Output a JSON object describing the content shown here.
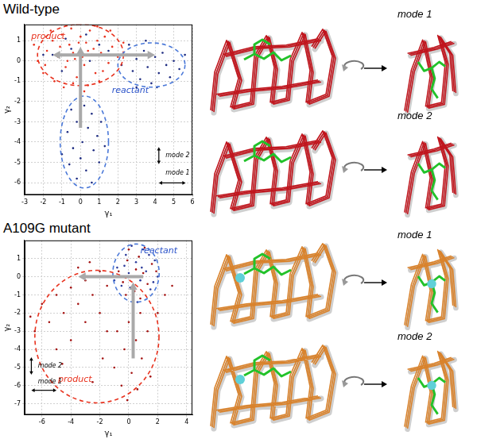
{
  "chart_data": [
    {
      "type": "scatter",
      "title": "Wild-type",
      "x_label": "γ₁",
      "y_label": "γ₂",
      "xlim": [
        -3,
        6
      ],
      "xticks": [
        -3,
        -2,
        -1,
        0,
        1,
        2,
        3,
        4,
        5,
        6
      ],
      "ylim": [
        -6.6,
        1.8
      ],
      "yticks": [
        -6,
        -5,
        -4,
        -3,
        -2,
        -1,
        0,
        1
      ],
      "grid": true,
      "series": [
        {
          "name": "reactant",
          "color": "#1c2a80",
          "marker": "circle",
          "values": [
            [
              -1.5,
              0.3
            ],
            [
              -0.5,
              0.6
            ],
            [
              0.5,
              0.0
            ],
            [
              1,
              0.8
            ],
            [
              -1,
              -0.5
            ],
            [
              0,
              -0.3
            ],
            [
              1.5,
              0.5
            ],
            [
              -2,
              0.3
            ],
            [
              0.3,
              1.3
            ],
            [
              -0.8,
              1.1
            ],
            [
              2.2,
              -0.2
            ],
            [
              2.5,
              0.3
            ],
            [
              2.8,
              -0.5
            ],
            [
              3,
              0.1
            ],
            [
              3.2,
              -0.9
            ],
            [
              3.4,
              0.5
            ],
            [
              3.6,
              -0.3
            ],
            [
              3.8,
              -1.1
            ],
            [
              4,
              0.2
            ],
            [
              4.2,
              -0.6
            ],
            [
              4.4,
              0.4
            ],
            [
              4.6,
              -0.2
            ],
            [
              4.8,
              -0.8
            ],
            [
              5,
              0
            ],
            [
              5.3,
              -0.4
            ],
            [
              5.6,
              0.3
            ],
            [
              3,
              -1.3
            ],
            [
              2.6,
              0.8
            ],
            [
              4.1,
              -1.3
            ],
            [
              3.5,
              1
            ],
            [
              0,
              -2
            ],
            [
              -0.5,
              -2.4
            ],
            [
              0.6,
              -2.6
            ],
            [
              -0.2,
              -3
            ],
            [
              0.4,
              -3.3
            ],
            [
              -0.7,
              -3.5
            ],
            [
              0.9,
              -3.7
            ],
            [
              0.1,
              -4
            ],
            [
              -0.4,
              -4.3
            ],
            [
              0.7,
              -4.4
            ],
            [
              0,
              -4.8
            ],
            [
              1,
              -5
            ],
            [
              -0.6,
              -5.1
            ],
            [
              0.3,
              -5.4
            ],
            [
              -0.2,
              -5.8
            ],
            [
              0.6,
              -6
            ],
            [
              1.3,
              -4.2
            ],
            [
              -1,
              -4.6
            ],
            [
              0.2,
              -2.2
            ],
            [
              1.1,
              -3
            ]
          ]
        },
        {
          "name": "product",
          "color": "#e8321e",
          "marker": "circle",
          "values": [
            [
              -1.8,
              0.5
            ],
            [
              -1.5,
              1.0
            ],
            [
              -1.2,
              0.2
            ],
            [
              -1,
              1.3
            ],
            [
              -0.8,
              -0.3
            ],
            [
              -0.6,
              0.8
            ],
            [
              -0.5,
              1.6
            ],
            [
              -0.3,
              0.1
            ],
            [
              -0.2,
              -0.8
            ],
            [
              0,
              0.5
            ],
            [
              0,
              1.2
            ],
            [
              0.2,
              -0.2
            ],
            [
              0.3,
              0.9
            ],
            [
              0.5,
              1.5
            ],
            [
              0.6,
              0.3
            ],
            [
              0.8,
              -0.6
            ],
            [
              0.9,
              1.0
            ],
            [
              1.1,
              0.4
            ],
            [
              1.3,
              1.2
            ],
            [
              1.5,
              -0.1
            ],
            [
              1.7,
              0.7
            ],
            [
              2,
              0.2
            ],
            [
              -2.3,
              0
            ],
            [
              -2,
              -0.6
            ],
            [
              -1.4,
              -1
            ],
            [
              -0.9,
              -1.3
            ],
            [
              -0.4,
              -1.1
            ],
            [
              0.4,
              -1.2
            ],
            [
              1,
              -1
            ],
            [
              -1.6,
              1.5
            ],
            [
              -0.7,
              0
            ],
            [
              0.1,
              0.2
            ],
            [
              0.7,
              0.6
            ],
            [
              -0.1,
              0.9
            ],
            [
              1.2,
              -0.5
            ],
            [
              -1.1,
              0.7
            ],
            [
              0.4,
              0.5
            ],
            [
              -0.4,
              0.4
            ],
            [
              1.6,
              1.5
            ],
            [
              -2.5,
              0.8
            ],
            [
              2.3,
              0.9
            ],
            [
              0.9,
              1.7
            ],
            [
              -0.2,
              1.8
            ],
            [
              0.2,
              -1.5
            ],
            [
              -1.9,
              -0.2
            ]
          ]
        }
      ],
      "annotations": [
        {
          "text": "product",
          "color": "#e8321e"
        },
        {
          "text": "reactant",
          "color": "#2a52c9"
        },
        {
          "text": "mode 2",
          "color": "#000000"
        },
        {
          "text": "mode 1",
          "color": "#000000"
        }
      ]
    },
    {
      "type": "scatter",
      "title": "A109G mutant",
      "x_label": "γ₁",
      "y_label": "γ₂",
      "xlim": [
        -7.2,
        4.4
      ],
      "xticks": [
        -6,
        -4,
        -2,
        0,
        2,
        4
      ],
      "ylim": [
        -7.6,
        2
      ],
      "yticks": [
        -7,
        -6,
        -5,
        -4,
        -3,
        -2,
        -1,
        0,
        1
      ],
      "grid": true,
      "series": [
        {
          "name": "reactant",
          "color": "#2b3a9a",
          "marker": "circle",
          "values": [
            [
              -0.8,
              0.5
            ],
            [
              -0.5,
              -0.5
            ],
            [
              -0.2,
              1.2
            ],
            [
              0,
              0.2
            ],
            [
              0.3,
              -1
            ],
            [
              0.5,
              0.8
            ],
            [
              0.8,
              -0.2
            ],
            [
              1,
              1.5
            ],
            [
              1.2,
              0.3
            ],
            [
              1.5,
              -0.7
            ],
            [
              1.8,
              0.9
            ],
            [
              2,
              0
            ],
            [
              -1,
              -0.2
            ],
            [
              0.2,
              1.7
            ],
            [
              0.6,
              -1.4
            ],
            [
              1.4,
              1.2
            ],
            [
              -0.3,
              0.6
            ],
            [
              0.9,
              0.5
            ],
            [
              0.1,
              -0.6
            ],
            [
              1.7,
              -0.3
            ]
          ]
        },
        {
          "name": "product",
          "color": "#a3100f",
          "marker": "circle",
          "values": [
            [
              -0.7,
              0.3
            ],
            [
              -0.4,
              -0.3
            ],
            [
              -0.1,
              0.9
            ],
            [
              0.2,
              0.0
            ],
            [
              0.4,
              -0.8
            ],
            [
              0.7,
              1.1
            ],
            [
              1,
              0.2
            ],
            [
              1.3,
              -0.4
            ],
            [
              1.6,
              0.7
            ],
            [
              0.5,
              0.4
            ],
            [
              -0.2,
              -1
            ],
            [
              1.1,
              1.6
            ],
            [
              0,
              1.5
            ],
            [
              1.9,
              0.3
            ],
            [
              0.8,
              -1.2
            ],
            [
              -1.5,
              -0.5
            ],
            [
              -2,
              0.3
            ],
            [
              -2.5,
              -1
            ],
            [
              -3,
              -0.2
            ],
            [
              -3.5,
              -1.5
            ],
            [
              -4,
              -0.6
            ],
            [
              -4.5,
              -2
            ],
            [
              -5,
              -1
            ],
            [
              -5.5,
              -2.5
            ],
            [
              -6,
              -1.5
            ],
            [
              -6.5,
              -3
            ],
            [
              -3,
              -2.5
            ],
            [
              -4,
              -3.5
            ],
            [
              -2,
              -2
            ],
            [
              -5,
              -4
            ],
            [
              -1.5,
              -3
            ],
            [
              -3.5,
              0.5
            ],
            [
              -2.7,
              0.8
            ],
            [
              -6.8,
              -2.2
            ],
            [
              -4.6,
              -4.8
            ],
            [
              0,
              -2.5
            ],
            [
              -0.8,
              -3
            ],
            [
              0.5,
              -3.5
            ],
            [
              -0.3,
              -4
            ],
            [
              0.9,
              -4.5
            ],
            [
              -1,
              -5
            ],
            [
              0.2,
              -5.3
            ],
            [
              -0.5,
              -6
            ],
            [
              0.6,
              -6.2
            ],
            [
              -0.1,
              -6.8
            ],
            [
              1.3,
              -3
            ],
            [
              -1.8,
              -4.5
            ],
            [
              1.5,
              -5.5
            ],
            [
              2,
              -2
            ],
            [
              2.5,
              -1
            ],
            [
              3,
              -0.5
            ],
            [
              -2.5,
              -5.8
            ],
            [
              0.8,
              -2
            ]
          ]
        }
      ],
      "annotations": [
        {
          "text": "reactant",
          "color": "#2a52c9"
        },
        {
          "text": "product",
          "color": "#e8321e"
        },
        {
          "text": "mode 2",
          "color": "#000000"
        },
        {
          "text": "mode 1",
          "color": "#000000"
        }
      ]
    }
  ],
  "structure_labels": [
    [
      "mode 1",
      "mode 2"
    ],
    [
      "mode 1",
      "mode 2"
    ]
  ]
}
